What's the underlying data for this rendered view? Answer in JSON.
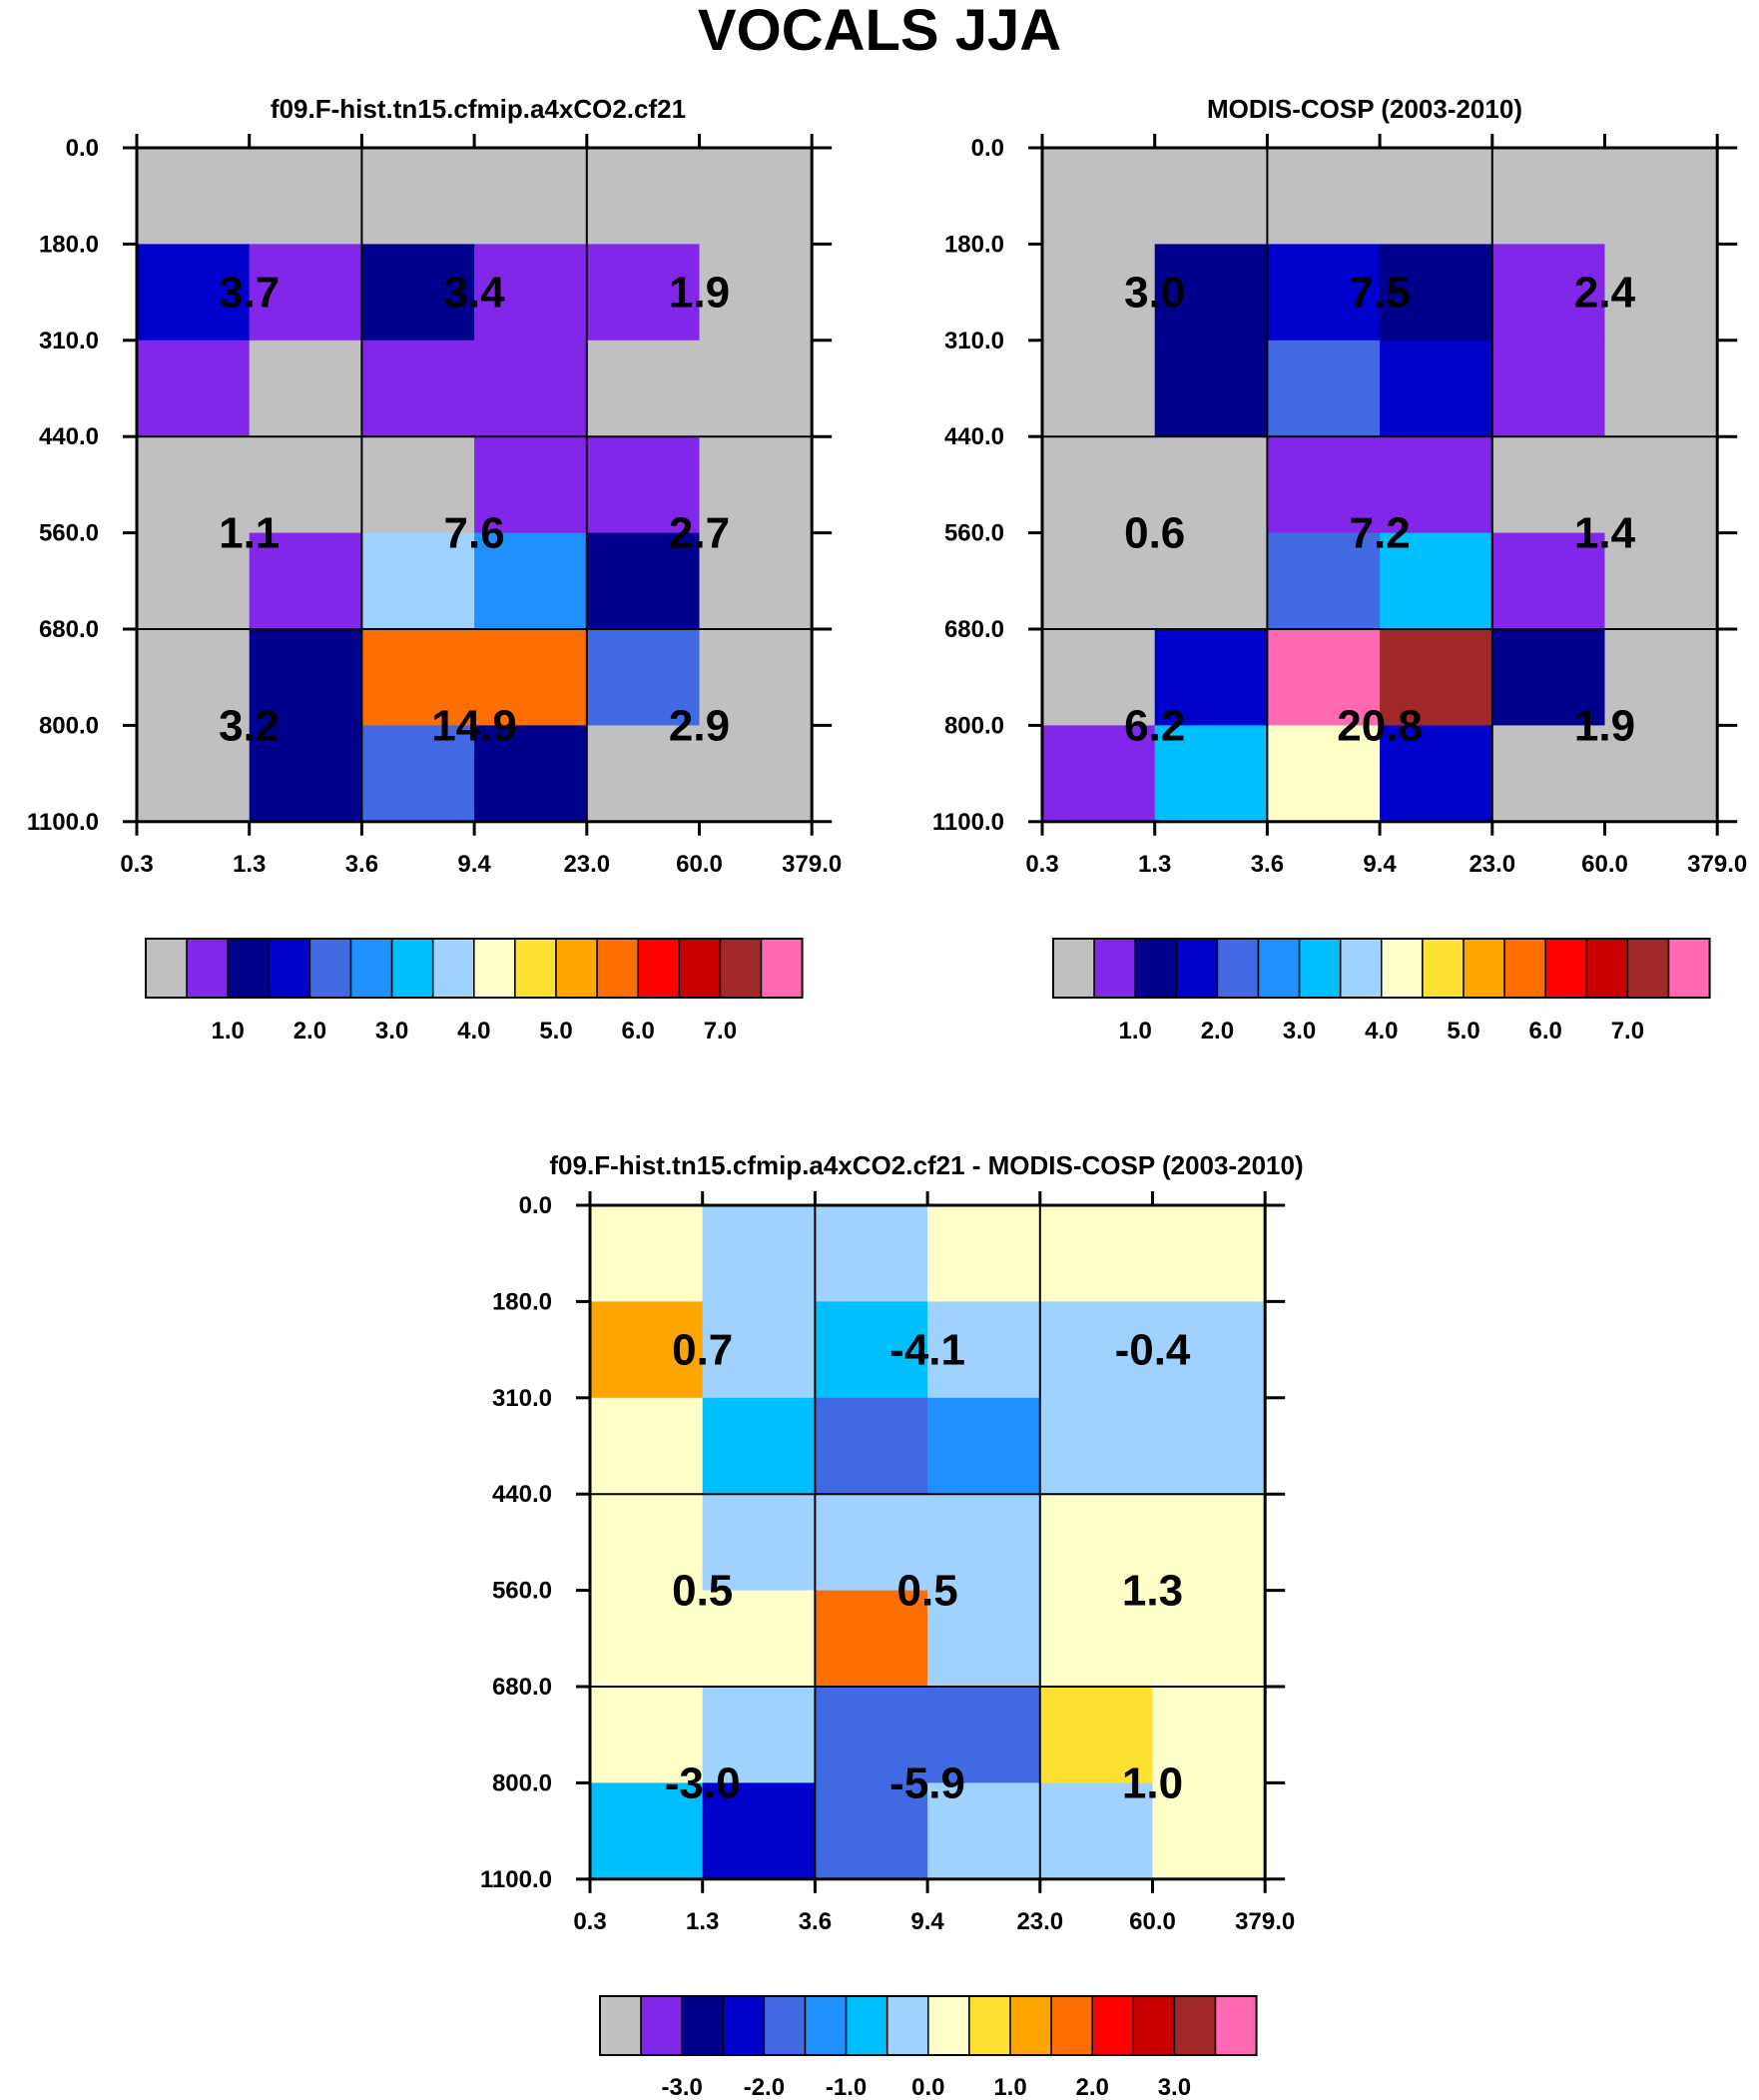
{
  "title": "VOCALS JJA",
  "palettes": {
    "abs": [
      "#c0c0c0",
      "#8226ea",
      "#00008c",
      "#0000cd",
      "#4169e1",
      "#1e90ff",
      "#00bfff",
      "#a0d2ff",
      "#ffffc8",
      "#ffe132",
      "#ffa500",
      "#ff6e00",
      "#ff0000",
      "#c80000",
      "#a02828",
      "#ff69b4"
    ],
    "diff": [
      "#c0c0c0",
      "#8226ea",
      "#00008c",
      "#0000cd",
      "#4169e1",
      "#1e90ff",
      "#00bfff",
      "#a0d2ff",
      "#ffffc8",
      "#ffe132",
      "#ffa500",
      "#ff6e00",
      "#ff0000",
      "#c80000",
      "#a02828",
      "#ff69b4"
    ]
  },
  "chart_data": [
    {
      "type": "heatmap",
      "title": "f09.F-hist.tn15.cfmip.a4xCO2.cf21",
      "x_ticks": [
        "0.3",
        "1.3",
        "3.6",
        "9.4",
        "23.0",
        "60.0",
        "379.0"
      ],
      "y_ticks": [
        "0.0",
        "180.0",
        "310.0",
        "440.0",
        "560.0",
        "680.0",
        "800.0",
        "1100.0"
      ],
      "cells_color_index": [
        [
          0,
          0,
          0,
          0,
          0,
          0
        ],
        [
          3,
          1,
          2,
          1,
          1,
          0
        ],
        [
          1,
          0,
          1,
          1,
          0,
          0
        ],
        [
          0,
          0,
          0,
          1,
          1,
          0
        ],
        [
          0,
          1,
          7,
          5,
          2,
          0
        ],
        [
          0,
          2,
          11,
          11,
          4,
          0
        ],
        [
          0,
          2,
          4,
          2,
          0,
          0
        ]
      ],
      "box_values": [
        [
          "3.7",
          "3.4",
          "1.9"
        ],
        [
          "1.1",
          "7.6",
          "2.7"
        ],
        [
          "3.2",
          "14.9",
          "2.9"
        ]
      ],
      "colorbar_labels": [
        "1.0",
        "2.0",
        "3.0",
        "4.0",
        "5.0",
        "6.0",
        "7.0"
      ],
      "palette": "abs"
    },
    {
      "type": "heatmap",
      "title": "MODIS-COSP (2003-2010)",
      "x_ticks": [
        "0.3",
        "1.3",
        "3.6",
        "9.4",
        "23.0",
        "60.0",
        "379.0"
      ],
      "y_ticks": [
        "0.0",
        "180.0",
        "310.0",
        "440.0",
        "560.0",
        "680.0",
        "800.0",
        "1100.0"
      ],
      "cells_color_index": [
        [
          0,
          0,
          0,
          0,
          0,
          0
        ],
        [
          0,
          2,
          3,
          2,
          1,
          0
        ],
        [
          0,
          2,
          4,
          3,
          1,
          0
        ],
        [
          0,
          0,
          1,
          1,
          0,
          0
        ],
        [
          0,
          0,
          4,
          6,
          1,
          0
        ],
        [
          0,
          3,
          15,
          14,
          2,
          0
        ],
        [
          1,
          6,
          8,
          3,
          0,
          0
        ]
      ],
      "box_values": [
        [
          "3.0",
          "7.5",
          "2.4"
        ],
        [
          "0.6",
          "7.2",
          "1.4"
        ],
        [
          "6.2",
          "20.8",
          "1.9"
        ]
      ],
      "colorbar_labels": [
        "1.0",
        "2.0",
        "3.0",
        "4.0",
        "5.0",
        "6.0",
        "7.0"
      ],
      "palette": "abs"
    },
    {
      "type": "heatmap",
      "title": "f09.F-hist.tn15.cfmip.a4xCO2.cf21 - MODIS-COSP (2003-2010)",
      "x_ticks": [
        "0.3",
        "1.3",
        "3.6",
        "9.4",
        "23.0",
        "60.0",
        "379.0"
      ],
      "y_ticks": [
        "0.0",
        "180.0",
        "310.0",
        "440.0",
        "560.0",
        "680.0",
        "800.0",
        "1100.0"
      ],
      "cells_color_index": [
        [
          8,
          7,
          7,
          8,
          8,
          8
        ],
        [
          10,
          7,
          6,
          7,
          7,
          7
        ],
        [
          8,
          6,
          4,
          5,
          7,
          7
        ],
        [
          8,
          7,
          7,
          7,
          8,
          8
        ],
        [
          8,
          8,
          11,
          7,
          8,
          8
        ],
        [
          8,
          7,
          4,
          4,
          9,
          8
        ],
        [
          6,
          3,
          4,
          7,
          7,
          8
        ]
      ],
      "box_values": [
        [
          "0.7",
          "-4.1",
          "-0.4"
        ],
        [
          "0.5",
          "0.5",
          "1.3"
        ],
        [
          "-3.0",
          "-5.9",
          "1.0"
        ]
      ],
      "colorbar_labels": [
        "-3.0",
        "-2.0",
        "-1.0",
        "0.0",
        "1.0",
        "2.0",
        "3.0"
      ],
      "palette": "diff"
    }
  ]
}
